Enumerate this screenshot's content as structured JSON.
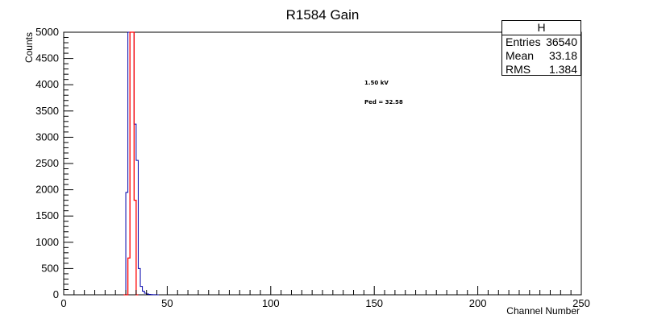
{
  "chart_data": {
    "type": "histogram",
    "title": "R1584 Gain",
    "xlabel": "Channel Number",
    "ylabel": "Counts",
    "xlim": [
      0,
      250
    ],
    "ylim": [
      0,
      5000
    ],
    "x_ticks": [
      0,
      50,
      100,
      150,
      200,
      250
    ],
    "y_ticks": [
      0,
      500,
      1000,
      1500,
      2000,
      2500,
      3000,
      3500,
      4000,
      4500,
      5000
    ],
    "bin_width": 1,
    "grid": false,
    "series": [
      {
        "color": "#0000aa",
        "bins_from": 29,
        "values": [
          0,
          1950,
          5000,
          5000,
          5000,
          3250,
          2560,
          500,
          160,
          70,
          30,
          15,
          8,
          4,
          2,
          1,
          0
        ]
      },
      {
        "color": "#ff0000",
        "bins_from": 29,
        "values": [
          0,
          0,
          700,
          5000,
          5000,
          1800,
          0
        ]
      }
    ],
    "annotations": [
      "1.50 kV",
      "Ped = 32.58"
    ],
    "stats": {
      "title": "H",
      "rows": [
        {
          "label": "Entries",
          "value": "36540"
        },
        {
          "label": "Mean",
          "value": "33.18"
        },
        {
          "label": "RMS",
          "value": "1.384"
        }
      ]
    }
  }
}
